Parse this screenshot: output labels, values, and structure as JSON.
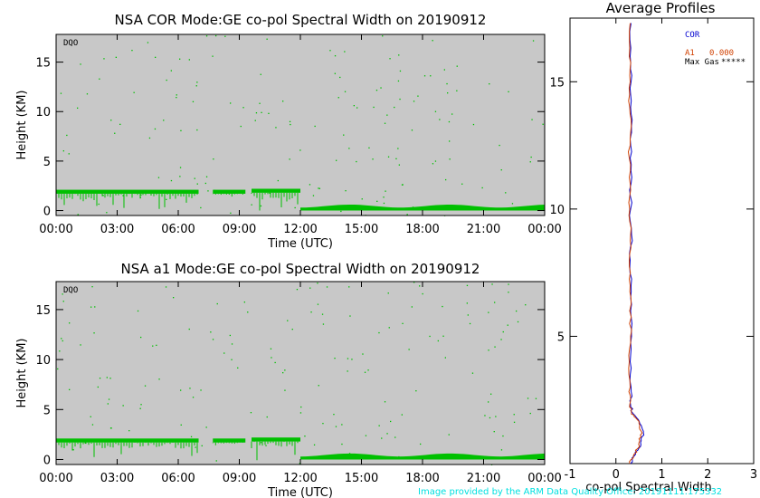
{
  "colors": {
    "panel_bg": "#c8c8c8",
    "data": "#00c000",
    "cor": "#0000d0",
    "a1": "#d04000",
    "credit": "#00e0e0"
  },
  "footer": {
    "credit": "Image provided by the ARM Data Quality Office: 20191111.175332"
  },
  "chart_data": [
    {
      "type": "heatmap",
      "title": "NSA COR  Mode:GE  co-pol Spectral Width  on 20190912",
      "tag": "DQO",
      "xlabel": "Time (UTC)",
      "ylabel": "Height (KM)",
      "x_ticks": [
        "00:00",
        "03:00",
        "06:00",
        "09:00",
        "12:00",
        "15:00",
        "18:00",
        "21:00",
        "00:00"
      ],
      "y_ticks": [
        0,
        5,
        10,
        15
      ],
      "xlim": [
        0,
        24
      ],
      "ylim": [
        -0.5,
        17.8
      ],
      "layers": [
        {
          "x_start": 0.0,
          "x_end": 7.0,
          "top": 2.1,
          "bottom": 0.4
        },
        {
          "x_start": 7.7,
          "x_end": 9.3,
          "top": 2.1,
          "bottom": 1.8
        },
        {
          "x_start": 9.6,
          "x_end": 12.0,
          "top": 2.2,
          "bottom": 0.2
        },
        {
          "x_start": 12.0,
          "x_end": 24.0,
          "top": 0.6,
          "bottom": 0.0
        }
      ]
    },
    {
      "type": "heatmap",
      "title": "NSA a1  Mode:GE  co-pol Spectral Width  on 20190912",
      "tag": "DQO",
      "xlabel": "Time (UTC)",
      "ylabel": "Height (KM)",
      "x_ticks": [
        "00:00",
        "03:00",
        "06:00",
        "09:00",
        "12:00",
        "15:00",
        "18:00",
        "21:00",
        "00:00"
      ],
      "y_ticks": [
        0,
        5,
        10,
        15
      ],
      "xlim": [
        0,
        24
      ],
      "ylim": [
        -0.5,
        17.8
      ],
      "layers": [
        {
          "x_start": 0.0,
          "x_end": 7.0,
          "top": 2.1,
          "bottom": 0.4
        },
        {
          "x_start": 7.7,
          "x_end": 9.3,
          "top": 2.1,
          "bottom": 1.8
        },
        {
          "x_start": 9.6,
          "x_end": 12.0,
          "top": 2.2,
          "bottom": 0.2
        },
        {
          "x_start": 12.0,
          "x_end": 24.0,
          "top": 0.6,
          "bottom": 0.0
        }
      ]
    },
    {
      "type": "line",
      "title": "Average Profiles",
      "xlabel": "co-pol Spectral Width",
      "x_ticks": [
        -1,
        0,
        1,
        2,
        3
      ],
      "y_ticks": [
        5,
        10,
        15
      ],
      "xlim": [
        -1,
        3
      ],
      "ylim": [
        0,
        17.5
      ],
      "legend": [
        {
          "name": "COR",
          "value": ""
        },
        {
          "name": "A1",
          "value": "0.000"
        },
        {
          "name": "Max Gas",
          "value": "*****"
        }
      ],
      "legend_position": "top-right",
      "series": [
        {
          "name": "COR",
          "points": [
            [
              0.32,
              0.0
            ],
            [
              0.4,
              0.3
            ],
            [
              0.5,
              0.6
            ],
            [
              0.55,
              0.9
            ],
            [
              0.6,
              1.2
            ],
            [
              0.55,
              1.5
            ],
            [
              0.45,
              1.8
            ],
            [
              0.36,
              2.0
            ],
            [
              0.32,
              2.3
            ],
            [
              0.33,
              3
            ],
            [
              0.31,
              4
            ],
            [
              0.34,
              5
            ],
            [
              0.32,
              6
            ],
            [
              0.33,
              7
            ],
            [
              0.31,
              8
            ],
            [
              0.34,
              9
            ],
            [
              0.32,
              10
            ],
            [
              0.33,
              11
            ],
            [
              0.31,
              12
            ],
            [
              0.34,
              13
            ],
            [
              0.32,
              14
            ],
            [
              0.33,
              15
            ],
            [
              0.31,
              16
            ],
            [
              0.33,
              17.3
            ]
          ]
        },
        {
          "name": "A1",
          "points": [
            [
              0.3,
              0.0
            ],
            [
              0.38,
              0.3
            ],
            [
              0.48,
              0.6
            ],
            [
              0.52,
              0.9
            ],
            [
              0.57,
              1.2
            ],
            [
              0.52,
              1.5
            ],
            [
              0.43,
              1.8
            ],
            [
              0.34,
              2.0
            ],
            [
              0.3,
              2.3
            ],
            [
              0.31,
              3
            ],
            [
              0.29,
              4
            ],
            [
              0.32,
              5
            ],
            [
              0.3,
              6
            ],
            [
              0.31,
              7
            ],
            [
              0.29,
              8
            ],
            [
              0.32,
              9
            ],
            [
              0.3,
              10
            ],
            [
              0.31,
              11
            ],
            [
              0.29,
              12
            ],
            [
              0.32,
              13
            ],
            [
              0.3,
              14
            ],
            [
              0.31,
              15
            ],
            [
              0.29,
              16
            ],
            [
              0.31,
              17.3
            ]
          ]
        }
      ]
    }
  ]
}
